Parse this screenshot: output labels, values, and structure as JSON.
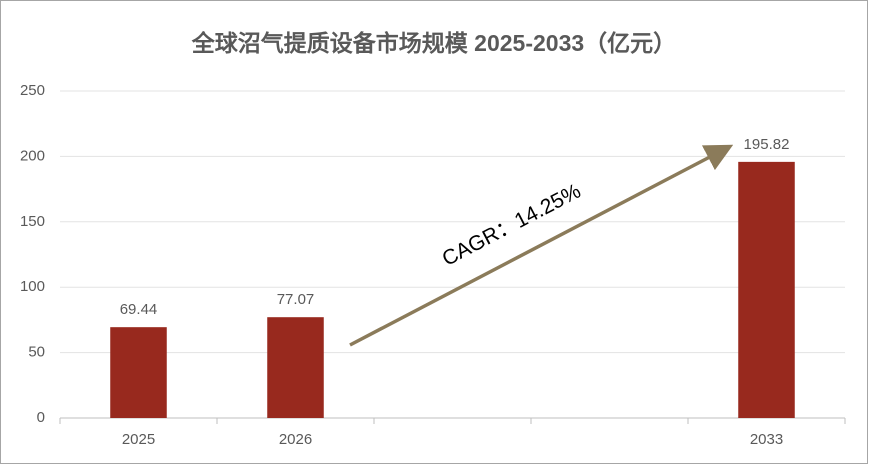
{
  "chart_data": {
    "type": "bar",
    "title": "全球沼气提质设备市场规模 2025-2033（亿元）",
    "categories": [
      "2025",
      "2026",
      null,
      null,
      "2033"
    ],
    "values": [
      69.44,
      77.07,
      null,
      null,
      195.82
    ],
    "color": "#98291e",
    "ylim": [
      0,
      250
    ],
    "yticks": [
      0,
      50,
      100,
      150,
      200,
      250
    ],
    "grid": true,
    "annotation": "CAGR：14.25%"
  }
}
